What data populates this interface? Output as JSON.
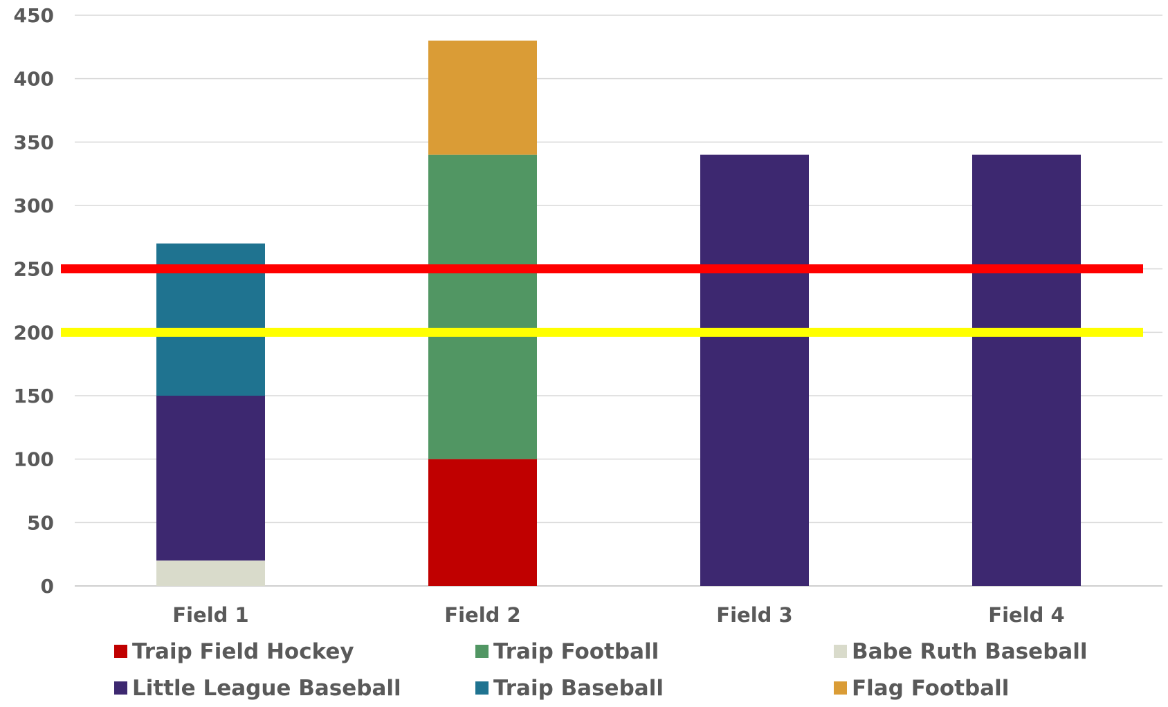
{
  "chart_data": {
    "type": "bar",
    "stacked": true,
    "categories": [
      "Field 1",
      "Field 2",
      "Field 3",
      "Field 4"
    ],
    "series": [
      {
        "name": "Babe Ruth Baseball",
        "color": "#D9DBCB",
        "values": [
          20,
          0,
          0,
          0
        ]
      },
      {
        "name": "Traip Field Hockey",
        "color": "#C00000",
        "values": [
          0,
          100,
          0,
          0
        ]
      },
      {
        "name": "Little League Baseball",
        "color": "#3D2870",
        "values": [
          130,
          0,
          340,
          340
        ]
      },
      {
        "name": "Traip Baseball",
        "color": "#1F7390",
        "values": [
          120,
          0,
          0,
          0
        ]
      },
      {
        "name": "Traip Football",
        "color": "#519663",
        "values": [
          0,
          240,
          0,
          0
        ]
      },
      {
        "name": "Flag Football",
        "color": "#DA9C36",
        "values": [
          0,
          90,
          0,
          0
        ]
      }
    ],
    "reference_lines": [
      {
        "value": 250,
        "color": "#FF0000"
      },
      {
        "value": 200,
        "color": "#FFFF00"
      }
    ],
    "legend_order": [
      "Traip Field Hockey",
      "Traip Football",
      "Babe Ruth Baseball",
      "Little League Baseball",
      "Traip Baseball",
      "Flag Football"
    ],
    "ylim": [
      0,
      450
    ],
    "yticks": [
      0,
      50,
      100,
      150,
      200,
      250,
      300,
      350,
      400,
      450
    ],
    "grid": true,
    "legend_position": "bottom",
    "title": "",
    "xlabel": "",
    "ylabel": ""
  }
}
